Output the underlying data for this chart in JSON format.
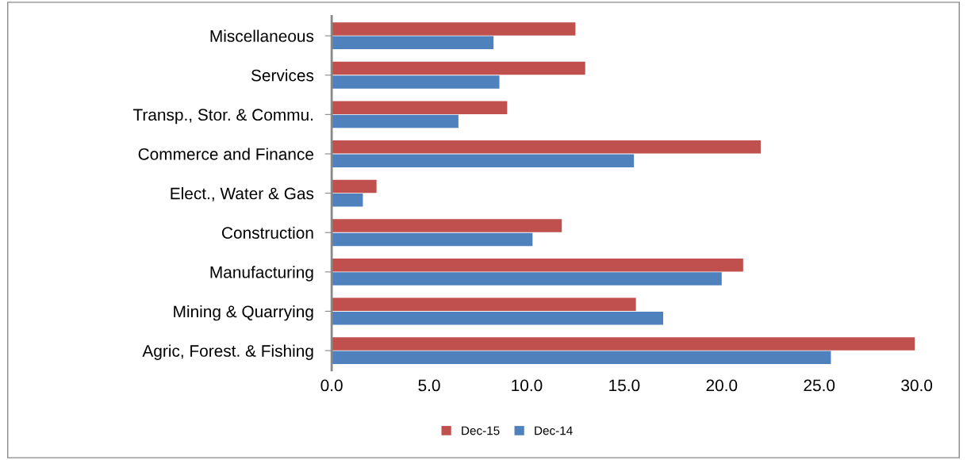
{
  "chart_data": {
    "type": "bar",
    "orientation": "horizontal",
    "categories": [
      "Miscellaneous",
      "Services",
      "Transp., Stor. & Commu.",
      "Commerce and Finance",
      "Elect., Water & Gas",
      "Construction",
      "Manufacturing",
      "Mining & Quarrying",
      "Agric, Forest. & Fishing"
    ],
    "series": [
      {
        "name": "Dec-15",
        "color": "#c0504d",
        "values": [
          12.5,
          13.0,
          9.0,
          22.0,
          2.3,
          11.8,
          21.1,
          15.6,
          29.9
        ]
      },
      {
        "name": "Dec-14",
        "color": "#4f81bd",
        "values": [
          8.3,
          8.6,
          6.5,
          15.5,
          1.6,
          10.3,
          20.0,
          17.0,
          25.6
        ]
      }
    ],
    "xlim": [
      0,
      30
    ],
    "xticks": [
      {
        "value": 0,
        "label": "0.0"
      },
      {
        "value": 5,
        "label": "5.0"
      },
      {
        "value": 10,
        "label": "10.0"
      },
      {
        "value": 15,
        "label": "15.0"
      },
      {
        "value": 20,
        "label": "20.0"
      },
      {
        "value": 25,
        "label": "25.0"
      },
      {
        "value": 30,
        "label": "30.0"
      }
    ],
    "grid": false,
    "legend": "bottom"
  }
}
